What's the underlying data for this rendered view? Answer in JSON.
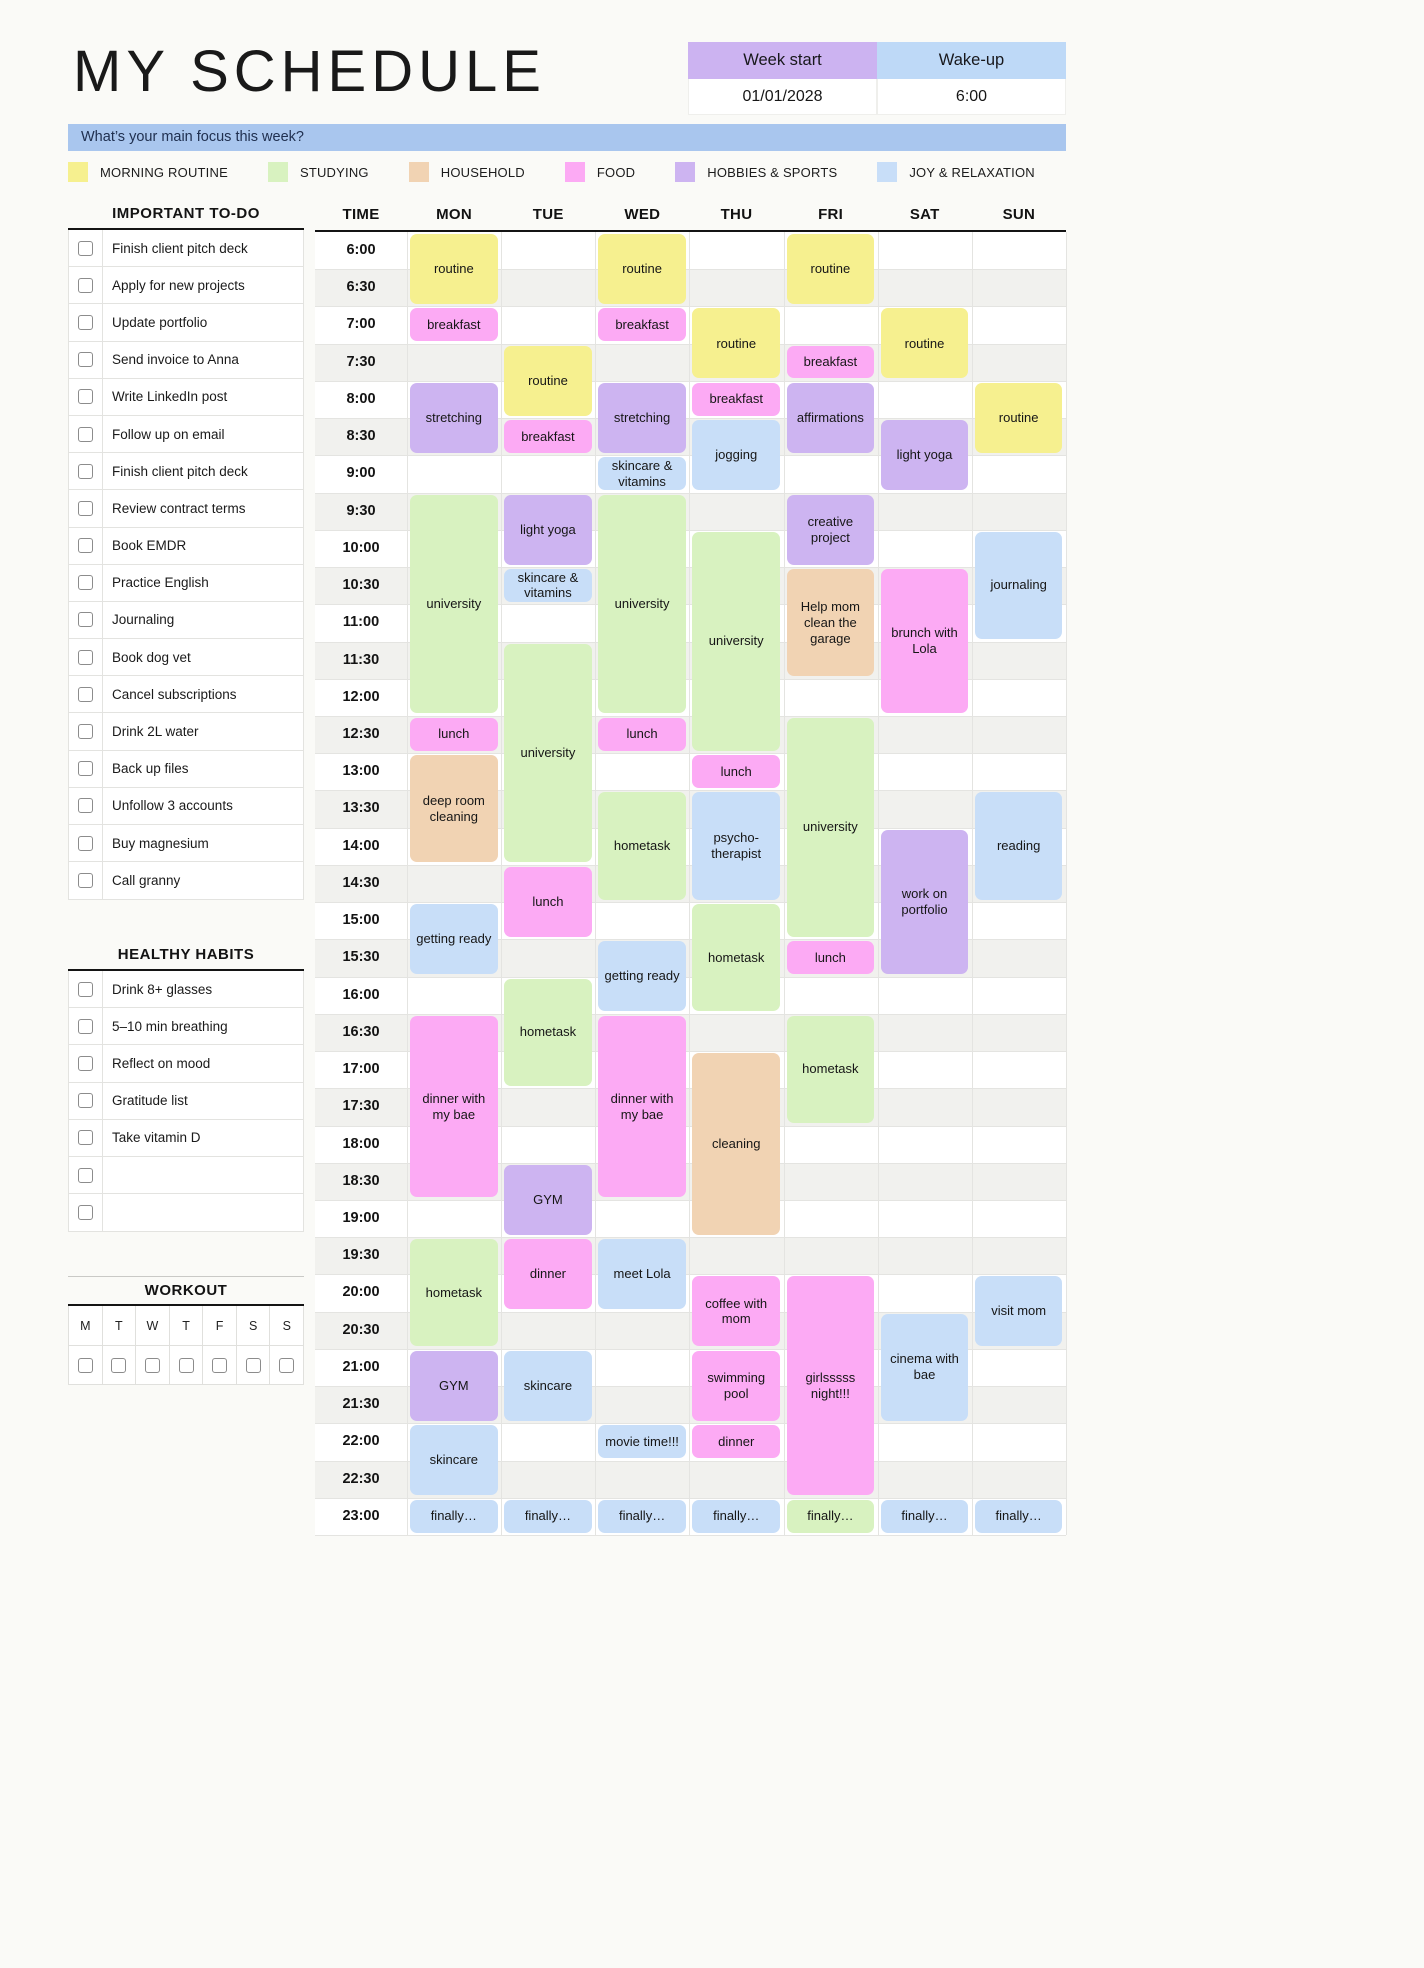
{
  "page": {
    "title": "MY SCHEDULE",
    "week_start_label": "Week start",
    "week_start_value": "01/01/2028",
    "wakeup_label": "Wake-up",
    "wakeup_value": "6:00",
    "focus_question": "What’s your main focus this week?"
  },
  "legend": [
    {
      "key": "morning",
      "label": "MORNING ROUTINE",
      "color": "#f6f08f"
    },
    {
      "key": "studying",
      "label": "STUDYING",
      "color": "#d8f2c0"
    },
    {
      "key": "household",
      "label": "HOUSEHOLD",
      "color": "#f1d3b3"
    },
    {
      "key": "food",
      "label": "FOOD",
      "color": "#fcaaf4"
    },
    {
      "key": "hobbies",
      "label": "HOBBIES & SPORTS",
      "color": "#cdb4f1"
    },
    {
      "key": "joy",
      "label": "JOY & RELAXATION",
      "color": "#c8def8"
    }
  ],
  "todo": {
    "title": "IMPORTANT TO-DO",
    "items": [
      "Finish client pitch deck",
      "Apply for new projects",
      "Update portfolio",
      "Send invoice to Anna",
      "Write LinkedIn post",
      "Follow up on email",
      "Finish client pitch deck",
      "Review contract terms",
      "Book EMDR",
      "Practice English",
      "Journaling",
      "Book dog vet",
      "Cancel subscriptions",
      "Drink 2L water",
      "Back up files",
      "Unfollow 3 accounts",
      "Buy magnesium",
      "Call granny"
    ]
  },
  "habits": {
    "title": "HEALTHY HABITS",
    "items": [
      "Drink 8+ glasses",
      "5–10 min breathing",
      "Reflect on mood",
      "Gratitude list",
      "Take vitamin D",
      "",
      ""
    ]
  },
  "workout": {
    "title": "WORKOUT",
    "days": [
      "M",
      "T",
      "W",
      "T",
      "F",
      "S",
      "S"
    ]
  },
  "schedule": {
    "time_header": "TIME",
    "day_headers": [
      "MON",
      "TUE",
      "WED",
      "THU",
      "FRI",
      "SAT",
      "SUN"
    ],
    "times": [
      "6:00",
      "6:30",
      "7:00",
      "7:30",
      "8:00",
      "8:30",
      "9:00",
      "9:30",
      "10:00",
      "10:30",
      "11:00",
      "11:30",
      "12:00",
      "12:30",
      "13:00",
      "13:30",
      "14:00",
      "14:30",
      "15:00",
      "15:30",
      "16:00",
      "16:30",
      "17:00",
      "17:30",
      "18:00",
      "18:30",
      "19:00",
      "19:30",
      "20:00",
      "20:30",
      "21:00",
      "21:30",
      "22:00",
      "22:30",
      "23:00"
    ],
    "events": [
      {
        "day": "MON",
        "start": "6:00",
        "rows": 2,
        "label": "routine",
        "category": "morning"
      },
      {
        "day": "MON",
        "start": "7:00",
        "rows": 1,
        "label": "breakfast",
        "category": "food"
      },
      {
        "day": "MON",
        "start": "8:00",
        "rows": 2,
        "label": "stretching",
        "category": "hobbies"
      },
      {
        "day": "MON",
        "start": "9:30",
        "rows": 6,
        "label": "university",
        "category": "studying"
      },
      {
        "day": "MON",
        "start": "12:30",
        "rows": 1,
        "label": "lunch",
        "category": "food"
      },
      {
        "day": "MON",
        "start": "13:00",
        "rows": 3,
        "label": "deep room cleaning",
        "category": "household"
      },
      {
        "day": "MON",
        "start": "15:00",
        "rows": 2,
        "label": "getting ready",
        "category": "joy"
      },
      {
        "day": "MON",
        "start": "16:30",
        "rows": 5,
        "label": "dinner with my bae",
        "category": "food"
      },
      {
        "day": "MON",
        "start": "19:30",
        "rows": 3,
        "label": "hometask",
        "category": "studying"
      },
      {
        "day": "MON",
        "start": "21:00",
        "rows": 2,
        "label": "GYM",
        "category": "hobbies"
      },
      {
        "day": "MON",
        "start": "22:00",
        "rows": 2,
        "label": "skincare",
        "category": "joy"
      },
      {
        "day": "MON",
        "start": "23:00",
        "rows": 1,
        "label": "finally…",
        "category": "joy"
      },
      {
        "day": "TUE",
        "start": "7:30",
        "rows": 2,
        "label": "routine",
        "category": "morning"
      },
      {
        "day": "TUE",
        "start": "8:30",
        "rows": 1,
        "label": "breakfast",
        "category": "food"
      },
      {
        "day": "TUE",
        "start": "9:30",
        "rows": 2,
        "label": "light yoga",
        "category": "hobbies"
      },
      {
        "day": "TUE",
        "start": "10:30",
        "rows": 1,
        "label": "skincare & vitamins",
        "category": "joy"
      },
      {
        "day": "TUE",
        "start": "11:30",
        "rows": 6,
        "label": "university",
        "category": "studying"
      },
      {
        "day": "TUE",
        "start": "14:30",
        "rows": 2,
        "label": "lunch",
        "category": "food"
      },
      {
        "day": "TUE",
        "start": "16:00",
        "rows": 3,
        "label": "hometask",
        "category": "studying"
      },
      {
        "day": "TUE",
        "start": "18:30",
        "rows": 2,
        "label": "GYM",
        "category": "hobbies"
      },
      {
        "day": "TUE",
        "start": "19:30",
        "rows": 2,
        "label": "dinner",
        "category": "food"
      },
      {
        "day": "TUE",
        "start": "21:00",
        "rows": 2,
        "label": "skincare",
        "category": "joy"
      },
      {
        "day": "TUE",
        "start": "23:00",
        "rows": 1,
        "label": "finally…",
        "category": "joy"
      },
      {
        "day": "WED",
        "start": "6:00",
        "rows": 2,
        "label": "routine",
        "category": "morning"
      },
      {
        "day": "WED",
        "start": "7:00",
        "rows": 1,
        "label": "breakfast",
        "category": "food"
      },
      {
        "day": "WED",
        "start": "8:00",
        "rows": 2,
        "label": "stretching",
        "category": "hobbies"
      },
      {
        "day": "WED",
        "start": "9:00",
        "rows": 1,
        "label": "skincare & vitamins",
        "category": "joy"
      },
      {
        "day": "WED",
        "start": "9:30",
        "rows": 6,
        "label": "university",
        "category": "studying"
      },
      {
        "day": "WED",
        "start": "12:30",
        "rows": 1,
        "label": "lunch",
        "category": "food"
      },
      {
        "day": "WED",
        "start": "13:30",
        "rows": 3,
        "label": "hometask",
        "category": "studying"
      },
      {
        "day": "WED",
        "start": "15:30",
        "rows": 2,
        "label": "getting ready",
        "category": "joy"
      },
      {
        "day": "WED",
        "start": "16:30",
        "rows": 5,
        "label": "dinner with my bae",
        "category": "food"
      },
      {
        "day": "WED",
        "start": "19:30",
        "rows": 2,
        "label": "meet Lola",
        "category": "joy"
      },
      {
        "day": "WED",
        "start": "22:00",
        "rows": 1,
        "label": "movie time!!!",
        "category": "joy"
      },
      {
        "day": "WED",
        "start": "23:00",
        "rows": 1,
        "label": "finally…",
        "category": "joy"
      },
      {
        "day": "THU",
        "start": "7:00",
        "rows": 2,
        "label": "routine",
        "category": "morning"
      },
      {
        "day": "THU",
        "start": "8:00",
        "rows": 1,
        "label": "breakfast",
        "category": "food"
      },
      {
        "day": "THU",
        "start": "8:30",
        "rows": 2,
        "label": "jogging",
        "category": "joy"
      },
      {
        "day": "THU",
        "start": "10:00",
        "rows": 6,
        "label": "university",
        "category": "studying"
      },
      {
        "day": "THU",
        "start": "13:00",
        "rows": 1,
        "label": "lunch",
        "category": "food"
      },
      {
        "day": "THU",
        "start": "13:30",
        "rows": 3,
        "label": "psycho-therapist",
        "category": "joy"
      },
      {
        "day": "THU",
        "start": "15:00",
        "rows": 3,
        "label": "hometask",
        "category": "studying"
      },
      {
        "day": "THU",
        "start": "17:00",
        "rows": 5,
        "label": "cleaning",
        "category": "household"
      },
      {
        "day": "THU",
        "start": "20:00",
        "rows": 2,
        "label": "coffee with mom",
        "category": "food"
      },
      {
        "day": "THU",
        "start": "21:00",
        "rows": 2,
        "label": "swimming pool",
        "category": "food"
      },
      {
        "day": "THU",
        "start": "22:00",
        "rows": 1,
        "label": "dinner",
        "category": "food"
      },
      {
        "day": "THU",
        "start": "23:00",
        "rows": 1,
        "label": "finally…",
        "category": "joy"
      },
      {
        "day": "FRI",
        "start": "6:00",
        "rows": 2,
        "label": "routine",
        "category": "morning"
      },
      {
        "day": "FRI",
        "start": "7:30",
        "rows": 1,
        "label": "breakfast",
        "category": "food"
      },
      {
        "day": "FRI",
        "start": "8:00",
        "rows": 2,
        "label": "affirmations",
        "category": "hobbies"
      },
      {
        "day": "FRI",
        "start": "9:30",
        "rows": 2,
        "label": "creative project",
        "category": "hobbies"
      },
      {
        "day": "FRI",
        "start": "10:30",
        "rows": 3,
        "label": "Help mom clean the garage",
        "category": "household"
      },
      {
        "day": "FRI",
        "start": "12:30",
        "rows": 6,
        "label": "university",
        "category": "studying"
      },
      {
        "day": "FRI",
        "start": "15:30",
        "rows": 1,
        "label": "lunch",
        "category": "food"
      },
      {
        "day": "FRI",
        "start": "16:30",
        "rows": 3,
        "label": "hometask",
        "category": "studying"
      },
      {
        "day": "FRI",
        "start": "20:00",
        "rows": 6,
        "label": "girlsssss night!!!",
        "category": "food"
      },
      {
        "day": "FRI",
        "start": "23:00",
        "rows": 1,
        "label": "finally…",
        "category": "studying"
      },
      {
        "day": "SAT",
        "start": "7:00",
        "rows": 2,
        "label": "routine",
        "category": "morning"
      },
      {
        "day": "SAT",
        "start": "8:30",
        "rows": 2,
        "label": "light yoga",
        "category": "hobbies"
      },
      {
        "day": "SAT",
        "start": "10:30",
        "rows": 4,
        "label": "brunch with Lola",
        "category": "food"
      },
      {
        "day": "SAT",
        "start": "14:00",
        "rows": 4,
        "label": "work on portfolio",
        "category": "hobbies"
      },
      {
        "day": "SAT",
        "start": "20:30",
        "rows": 3,
        "label": "cinema with bae",
        "category": "joy"
      },
      {
        "day": "SAT",
        "start": "23:00",
        "rows": 1,
        "label": "finally…",
        "category": "joy"
      },
      {
        "day": "SUN",
        "start": "8:00",
        "rows": 2,
        "label": "routine",
        "category": "morning"
      },
      {
        "day": "SUN",
        "start": "10:00",
        "rows": 3,
        "label": "journaling",
        "category": "joy"
      },
      {
        "day": "SUN",
        "start": "13:30",
        "rows": 3,
        "label": "reading",
        "category": "joy"
      },
      {
        "day": "SUN",
        "start": "20:00",
        "rows": 2,
        "label": "visit mom",
        "category": "joy"
      },
      {
        "day": "SUN",
        "start": "23:00",
        "rows": 1,
        "label": "finally…",
        "category": "joy"
      }
    ]
  }
}
